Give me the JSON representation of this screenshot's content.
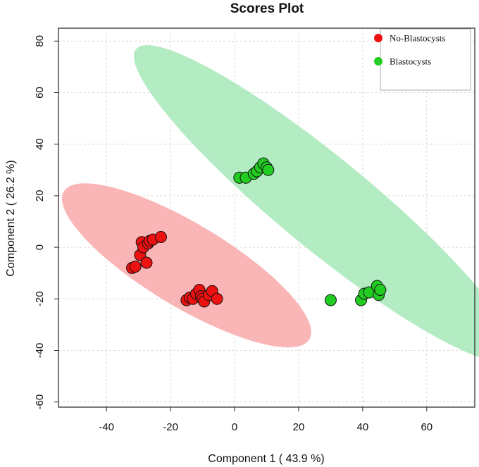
{
  "chart_data": {
    "type": "scatter",
    "title": "Scores Plot",
    "xlabel": "Component 1 ( 43.9 %)",
    "ylabel": "Component 2 ( 26.2 %)",
    "xlim": [
      -55,
      75
    ],
    "ylim": [
      -62,
      85
    ],
    "xticks": [
      -40,
      -20,
      0,
      20,
      40,
      60
    ],
    "yticks": [
      -60,
      -40,
      -20,
      0,
      20,
      40,
      60,
      80
    ],
    "grid": true,
    "legend_position": "top-right",
    "series": [
      {
        "name": "No-Blastocysts",
        "color": "#ee1111",
        "ellipse_color": "#f9a9a9",
        "ellipse": {
          "center": [
            -15,
            -7
          ],
          "semi_major": 48,
          "semi_minor": 15,
          "angle_deg": -38
        },
        "points": [
          [
            -32,
            -8
          ],
          [
            -31,
            -7.5
          ],
          [
            -29.5,
            -3
          ],
          [
            -29,
            2
          ],
          [
            -28.5,
            0
          ],
          [
            -27.5,
            -6
          ],
          [
            -27,
            1.5
          ],
          [
            -26.5,
            2.5
          ],
          [
            -25.5,
            3
          ],
          [
            -23,
            4
          ],
          [
            -15,
            -20.5
          ],
          [
            -14,
            -19.5
          ],
          [
            -13,
            -20
          ],
          [
            -12,
            -18
          ],
          [
            -11,
            -16.5
          ],
          [
            -10.5,
            -19
          ],
          [
            -10,
            -20
          ],
          [
            -9.5,
            -21
          ],
          [
            -8,
            -18.5
          ],
          [
            -7,
            -17
          ],
          [
            -5.5,
            -20
          ]
        ]
      },
      {
        "name": "Blastocysts",
        "color": "#22cc22",
        "ellipse_color": "#a6e8b8",
        "ellipse": {
          "center": [
            28,
            17
          ],
          "semi_major": 84,
          "semi_minor": 16,
          "angle_deg": -46
        },
        "points": [
          [
            1.5,
            27
          ],
          [
            3.5,
            27
          ],
          [
            6,
            28.5
          ],
          [
            7,
            29.5
          ],
          [
            8,
            31
          ],
          [
            9,
            32.5
          ],
          [
            10,
            31
          ],
          [
            10.5,
            30
          ],
          [
            30,
            -20.5
          ],
          [
            39.5,
            -20.5
          ],
          [
            40.5,
            -18
          ],
          [
            42,
            -17.5
          ],
          [
            44.5,
            -15
          ],
          [
            45,
            -18.5
          ],
          [
            45.5,
            -16.5
          ]
        ]
      }
    ]
  }
}
